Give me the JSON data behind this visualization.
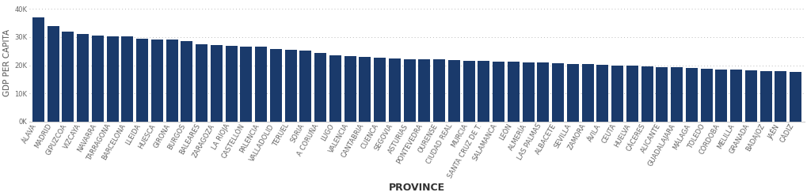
{
  "provinces": [
    "ÁLAVA",
    "MADRID",
    "GIPUZCOA",
    "VIZCAYA",
    "NAVARRA",
    "TARRAGONA",
    "BARCELONA",
    "LLEIDA",
    "HUESCA",
    "GIRONA",
    "BURGOS",
    "BALEARES",
    "ZARAGOZA",
    "LA RIOJA",
    "CASTELLÓN",
    "PALENCIA",
    "VALLADOLID",
    "TERUEL",
    "SORIA",
    "A CORUÑA",
    "LUGO",
    "VALENCIA",
    "CANTABRIA",
    "CUENCA",
    "SEGOVIA",
    "ASTURIAS",
    "PONTEVEDRA",
    "OURENSE",
    "CIUDAD REAL",
    "MURCIA",
    "SANTA CRUZ DE T.",
    "SALAMANCA",
    "LEÓN",
    "ALMERÍA",
    "LAS PALMAS",
    "ALBACETE",
    "SEVILLA",
    "ZAMORA",
    "ÁVILA",
    "CEUTA",
    "HUELVA",
    "CÁCERES",
    "ALICANTE",
    "GUADALAJARA",
    "MÁLAGA",
    "TOLEDO",
    "CÓRDOBA",
    "MELILLA",
    "GRANADA",
    "BADAJOZ",
    "JAÉN",
    "CÁDIZ"
  ],
  "values": [
    37000,
    34000,
    32000,
    31000,
    30500,
    30300,
    30200,
    29500,
    29200,
    29000,
    28500,
    27500,
    27200,
    27000,
    26700,
    26500,
    25700,
    25500,
    25300,
    24500,
    23400,
    23200,
    23000,
    22700,
    22500,
    22200,
    22100,
    22000,
    21700,
    21600,
    21500,
    21400,
    21200,
    21000,
    20900,
    20700,
    20500,
    20300,
    20100,
    20000,
    19800,
    19600,
    19400,
    19200,
    19000,
    18800,
    18600,
    18400,
    18200,
    18000,
    17800,
    17500
  ],
  "bar_color": "#1a3a6b",
  "background_color": "#ffffff",
  "ylabel": "GDP PER CAPITA",
  "xlabel": "PROVINCE",
  "yticks": [
    0,
    10000,
    20000,
    30000,
    40000
  ],
  "ytick_labels": [
    "0K",
    "10K",
    "20K",
    "30K",
    "40K"
  ],
  "ylim": [
    0,
    42000
  ],
  "grid_color": "#bbbbbb",
  "label_fontsize": 7.5,
  "tick_fontsize": 6.0,
  "xlabel_fontsize": 9
}
